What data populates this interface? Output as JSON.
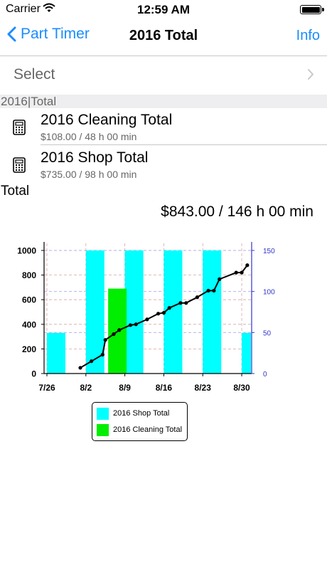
{
  "status_bar": {
    "carrier": "Carrier",
    "time": "12:59 AM"
  },
  "nav": {
    "back_label": "Part Timer",
    "title": "2016 Total",
    "info_label": "Info"
  },
  "select": {
    "label": "Select"
  },
  "section": {
    "header": "2016|Total"
  },
  "items": [
    {
      "title": "2016 Cleaning Total",
      "subtitle": "$108.00 / 48 h 00 min",
      "icon": "calculator-icon"
    },
    {
      "title": "2016 Shop Total",
      "subtitle": "$735.00 / 98 h 00 min",
      "icon": "calculator-icon"
    }
  ],
  "total": {
    "label": "Total",
    "value": "$843.00 / 146 h 00 min"
  },
  "colors": {
    "accent": "#1a8cff",
    "shop": "#00ffff",
    "cleaning": "#00ee00",
    "line": "#000000",
    "right_axis": "#3333cc"
  },
  "chart_data": {
    "type": "bar",
    "x_ticks": [
      "7/26",
      "8/2",
      "8/9",
      "8/16",
      "8/23",
      "8/30"
    ],
    "ylim": [
      0,
      1000
    ],
    "y_ticks": [
      0,
      200,
      400,
      600,
      800,
      1000
    ],
    "y2lim": [
      0,
      150
    ],
    "y2_ticks": [
      0,
      50,
      100,
      150
    ],
    "grid": true,
    "legend_position": "bottom",
    "series": [
      {
        "name": "2016 Shop Total",
        "kind": "bar",
        "color": "#00ffff",
        "points": [
          {
            "x": "7/26",
            "y": 330
          },
          {
            "x": "8/2",
            "y": 1000
          },
          {
            "x": "8/9",
            "y": 1000
          },
          {
            "x": "8/16",
            "y": 1000
          },
          {
            "x": "8/23",
            "y": 1000
          },
          {
            "x": "8/30",
            "y": 330
          }
        ]
      },
      {
        "name": "2016 Cleaning Total",
        "kind": "bar",
        "color": "#00ee00",
        "points": [
          {
            "x": "8/6",
            "y": 690
          }
        ]
      },
      {
        "kind": "line",
        "axis": "right",
        "color": "#000000",
        "points": [
          {
            "x": "8/1",
            "y": 7
          },
          {
            "x": "8/3",
            "y": 15
          },
          {
            "x": "8/5",
            "y": 23
          },
          {
            "x": "8/5.5",
            "y": 41
          },
          {
            "x": "8/7",
            "y": 48
          },
          {
            "x": "8/8",
            "y": 53
          },
          {
            "x": "8/10",
            "y": 59
          },
          {
            "x": "8/11",
            "y": 60
          },
          {
            "x": "8/13",
            "y": 66
          },
          {
            "x": "8/15",
            "y": 73
          },
          {
            "x": "8/16",
            "y": 74
          },
          {
            "x": "8/17",
            "y": 80
          },
          {
            "x": "8/19",
            "y": 86
          },
          {
            "x": "8/20",
            "y": 86
          },
          {
            "x": "8/22",
            "y": 93
          },
          {
            "x": "8/24",
            "y": 101
          },
          {
            "x": "8/25",
            "y": 101
          },
          {
            "x": "8/26",
            "y": 115
          },
          {
            "x": "8/29",
            "y": 123
          },
          {
            "x": "8/30",
            "y": 123
          },
          {
            "x": "8/31",
            "y": 132
          }
        ]
      }
    ]
  }
}
